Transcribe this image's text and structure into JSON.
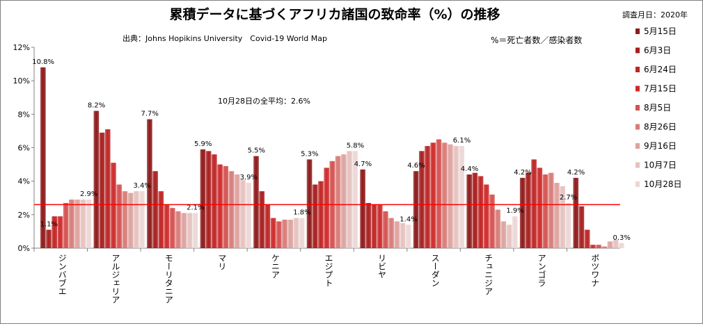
{
  "chart_data": {
    "type": "bar",
    "title": "累積データに基づくアフリカ諸国の致命率（%）の推移",
    "subtitle": "出典：Johns Hopikins University　Covid-19 World Map",
    "definition": "%＝死亡者数／感染者数",
    "survey_label": "調査月日：2020年",
    "annotation": "10月28日の全平均：2.6%",
    "reference_line": 2.6,
    "ylim": [
      0,
      12
    ],
    "y_ticks": [
      "0%",
      "2%",
      "4%",
      "6%",
      "8%",
      "10%",
      "12%"
    ],
    "legend_position": "right",
    "categories": [
      "ジンバブエ",
      "アルジェリア",
      "モーリタニア",
      "マリ",
      "ケニア",
      "エジプト",
      "リビヤ",
      "スーダン",
      "チュニジア",
      "アンゴラ",
      "ボツワナ"
    ],
    "series": [
      {
        "name": "5月15日",
        "values": [
          10.8,
          8.2,
          7.7,
          5.9,
          5.5,
          5.3,
          4.7,
          4.6,
          4.4,
          4.2,
          4.2
        ]
      },
      {
        "name": "6月3日",
        "values": [
          1.1,
          6.9,
          4.6,
          5.8,
          3.4,
          3.8,
          2.7,
          5.8,
          4.5,
          4.5,
          2.5
        ]
      },
      {
        "name": "6月24日",
        "values": [
          1.9,
          7.1,
          3.4,
          5.6,
          2.6,
          4.0,
          2.6,
          6.1,
          4.3,
          5.3,
          1.1
        ]
      },
      {
        "name": "7月15日",
        "values": [
          1.9,
          5.1,
          2.6,
          5.0,
          1.8,
          4.8,
          2.6,
          6.3,
          3.8,
          4.8,
          0.2
        ]
      },
      {
        "name": "8月5日",
        "values": [
          2.7,
          3.8,
          2.4,
          4.9,
          1.6,
          5.2,
          2.2,
          6.5,
          3.2,
          4.4,
          0.2
        ]
      },
      {
        "name": "8月26日",
        "values": [
          2.9,
          3.4,
          2.2,
          4.6,
          1.7,
          5.5,
          1.8,
          6.3,
          2.3,
          4.5,
          0.1
        ]
      },
      {
        "name": "9月16日",
        "values": [
          2.9,
          3.3,
          2.1,
          4.4,
          1.7,
          5.6,
          1.6,
          6.2,
          1.6,
          3.9,
          0.4
        ]
      },
      {
        "name": "10月7日",
        "values": [
          2.9,
          3.4,
          2.1,
          4.1,
          1.8,
          5.8,
          1.5,
          6.1,
          1.4,
          3.7,
          0.5
        ]
      },
      {
        "name": "10月28日",
        "values": [
          2.9,
          3.4,
          2.1,
          3.9,
          1.8,
          5.8,
          1.4,
          6.1,
          1.9,
          2.7,
          0.3
        ]
      }
    ],
    "data_labels": [
      {
        "text": "10.8%",
        "value": 10.8
      },
      {
        "text": "1.1%",
        "value": 1.1
      },
      {
        "text": "2.9%",
        "value": 2.9
      },
      {
        "text": "8.2%",
        "value": 8.2
      },
      {
        "text": "3.4%",
        "value": 3.4
      },
      {
        "text": "7.7%",
        "value": 7.7
      },
      {
        "text": "2.1%",
        "value": 2.1
      },
      {
        "text": "5.9%",
        "value": 5.9
      },
      {
        "text": "3.9%",
        "value": 3.9
      },
      {
        "text": "5.5%",
        "value": 5.5
      },
      {
        "text": "1.8%",
        "value": 1.8
      },
      {
        "text": "5.3%",
        "value": 5.3
      },
      {
        "text": "5.8%",
        "value": 5.8
      },
      {
        "text": "4.7%",
        "value": 4.7
      },
      {
        "text": "1.4%",
        "value": 1.4
      },
      {
        "text": "4.6%",
        "value": 4.6
      },
      {
        "text": "6.1%",
        "value": 6.1
      },
      {
        "text": "4.4%",
        "value": 4.4
      },
      {
        "text": "1.9%",
        "value": 1.9
      },
      {
        "text": "4.2%",
        "value": 4.2
      },
      {
        "text": "2.7%",
        "value": 2.7
      },
      {
        "text": "4.2%",
        "value": 4.2
      },
      {
        "text": "0.3%",
        "value": 0.3
      }
    ],
    "colors": [
      "#8e1a1a",
      "#a81e1e",
      "#bf2424",
      "#cf2a2a",
      "#d4514f",
      "#d77c78",
      "#dda29e",
      "#e5c2bf",
      "#ecd7d5"
    ],
    "reference_line_color": "#ff0000",
    "grid": false
  }
}
